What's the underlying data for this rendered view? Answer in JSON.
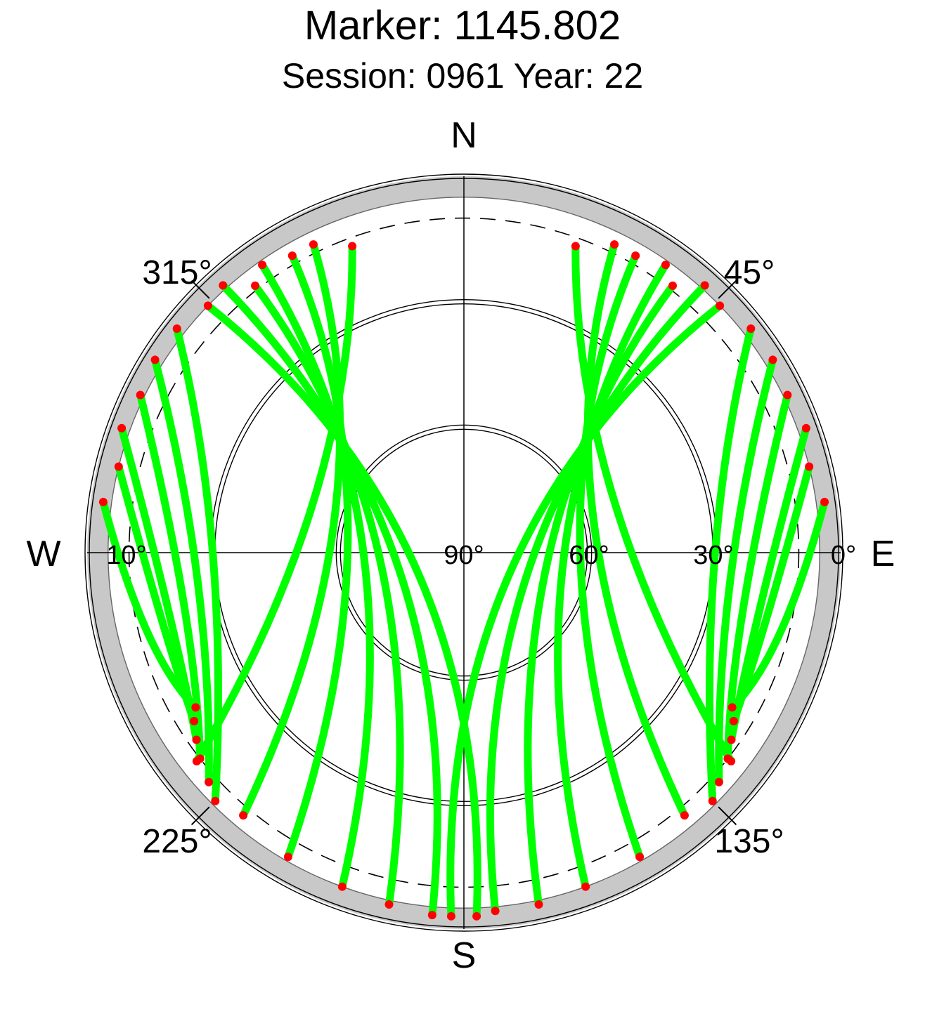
{
  "title": "Marker: 1145.802",
  "subtitle": "Session: 0961 Year: 22",
  "chart_data": {
    "type": "scatter",
    "projection": "polar-skyplot",
    "title": "Marker: 1145.802",
    "subtitle": "Session: 0961 Year: 22",
    "compass_labels": {
      "north": "N",
      "east": "E",
      "south": "S",
      "west": "W"
    },
    "azimuth_tick_labels": [
      "45°",
      "135°",
      "225°",
      "315°"
    ],
    "elevation_tick_labels": [
      "0°",
      "10°",
      "30°",
      "60°",
      "90°"
    ],
    "elevation_range": [
      0,
      90
    ],
    "elevation_rings": [
      0,
      30,
      60
    ],
    "elevation_mask_dashed": 10,
    "masked_band_elevation": 5,
    "colors": {
      "track": "#00ff00",
      "low_elevation": "#ff0000",
      "mask_band": "#c8c8c8",
      "ring": "#000000"
    },
    "satellite_tracks": [
      {
        "az_start": 26,
        "el_start": 8,
        "az_peak": 75,
        "el_peak": 58,
        "az_end": 140,
        "el_end": 8
      },
      {
        "az_start": 30,
        "el_start": 8,
        "az_peak": 82,
        "el_peak": 62,
        "az_end": 150,
        "el_end": 6
      },
      {
        "az_start": 35,
        "el_start": 6,
        "az_peak": 90,
        "el_peak": 66,
        "az_end": 160,
        "el_end": 5
      },
      {
        "az_start": 38,
        "el_start": 9,
        "az_peak": 98,
        "el_peak": 70,
        "az_end": 168,
        "el_end": 4
      },
      {
        "az_start": 42,
        "el_start": 4,
        "az_peak": 105,
        "el_peak": 74,
        "az_end": 175,
        "el_end": 4
      },
      {
        "az_start": 46,
        "el_start": 5,
        "az_peak": 112,
        "el_peak": 78,
        "az_end": 182,
        "el_end": 3
      },
      {
        "az_start": 20,
        "el_start": 12,
        "az_peak": 70,
        "el_peak": 52,
        "az_end": 128,
        "el_end": 9
      },
      {
        "az_start": 52,
        "el_start": 3,
        "az_peak": 90,
        "el_peak": 30,
        "az_end": 135,
        "el_end": 6
      },
      {
        "az_start": 58,
        "el_start": 3,
        "az_peak": 95,
        "el_peak": 26,
        "az_end": 132,
        "el_end": 8
      },
      {
        "az_start": 64,
        "el_start": 4,
        "az_peak": 100,
        "el_peak": 22,
        "az_end": 128,
        "el_end": 10
      },
      {
        "az_start": 70,
        "el_start": 3,
        "az_peak": 100,
        "el_peak": 18,
        "az_end": 125,
        "el_end": 12
      },
      {
        "az_start": 76,
        "el_start": 5,
        "az_peak": 102,
        "el_peak": 16,
        "az_end": 122,
        "el_end": 14
      },
      {
        "az_start": 82,
        "el_start": 3,
        "az_peak": 104,
        "el_peak": 12,
        "az_end": 120,
        "el_end": 16
      },
      {
        "az_start": 334,
        "el_start": 8,
        "az_peak": 285,
        "el_peak": 58,
        "az_end": 220,
        "el_end": 8
      },
      {
        "az_start": 330,
        "el_start": 8,
        "az_peak": 278,
        "el_peak": 62,
        "az_end": 210,
        "el_end": 6
      },
      {
        "az_start": 325,
        "el_start": 6,
        "az_peak": 270,
        "el_peak": 66,
        "az_end": 200,
        "el_end": 5
      },
      {
        "az_start": 322,
        "el_start": 9,
        "az_peak": 262,
        "el_peak": 70,
        "az_end": 192,
        "el_end": 4
      },
      {
        "az_start": 318,
        "el_start": 4,
        "az_peak": 255,
        "el_peak": 74,
        "az_end": 185,
        "el_end": 3
      },
      {
        "az_start": 314,
        "el_start": 5,
        "az_peak": 248,
        "el_peak": 78,
        "az_end": 178,
        "el_end": 3
      },
      {
        "az_start": 340,
        "el_start": 12,
        "az_peak": 290,
        "el_peak": 52,
        "az_end": 232,
        "el_end": 9
      },
      {
        "az_start": 308,
        "el_start": 3,
        "az_peak": 270,
        "el_peak": 30,
        "az_end": 225,
        "el_end": 6
      },
      {
        "az_start": 302,
        "el_start": 3,
        "az_peak": 265,
        "el_peak": 26,
        "az_end": 228,
        "el_end": 8
      },
      {
        "az_start": 296,
        "el_start": 4,
        "az_peak": 260,
        "el_peak": 22,
        "az_end": 232,
        "el_end": 10
      },
      {
        "az_start": 290,
        "el_start": 3,
        "az_peak": 260,
        "el_peak": 18,
        "az_end": 235,
        "el_end": 12
      },
      {
        "az_start": 284,
        "el_start": 5,
        "az_peak": 258,
        "el_peak": 16,
        "az_end": 238,
        "el_end": 14
      },
      {
        "az_start": 278,
        "el_start": 3,
        "az_peak": 256,
        "el_peak": 12,
        "az_end": 240,
        "el_end": 16
      }
    ]
  }
}
